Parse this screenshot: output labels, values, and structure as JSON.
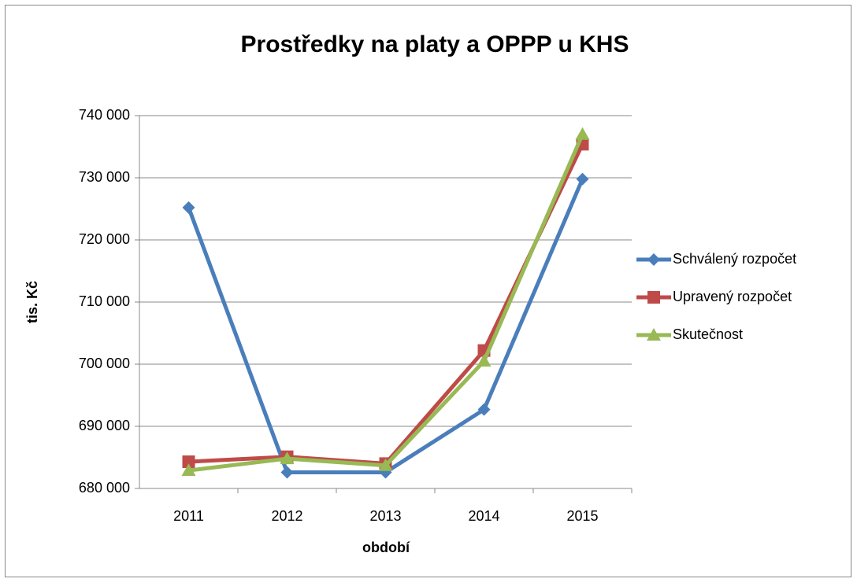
{
  "chart_data": {
    "type": "line",
    "title": "Prostředky na platy a OPPP u KHS",
    "x_label": "období",
    "y_label": "tis. Kč",
    "categories": [
      "2011",
      "2012",
      "2013",
      "2014",
      "2015"
    ],
    "series": [
      {
        "name": "Schválený rozpočet",
        "color": "#4a7ebb",
        "marker": "diamond",
        "values": [
          725200,
          682600,
          682600,
          692700,
          729800
        ]
      },
      {
        "name": "Upravený rozpočet",
        "color": "#be4b48",
        "marker": "square",
        "values": [
          684300,
          685100,
          684000,
          702200,
          735400
        ]
      },
      {
        "name": "Skutečnost",
        "color": "#98b954",
        "marker": "triangle",
        "values": [
          682900,
          684800,
          683700,
          700500,
          737000
        ]
      }
    ],
    "ylim": [
      680000,
      740000
    ],
    "yticks": [
      {
        "value": 680000,
        "label": "680 000"
      },
      {
        "value": 690000,
        "label": "690 000"
      },
      {
        "value": 700000,
        "label": "700 000"
      },
      {
        "value": 710000,
        "label": "710 000"
      },
      {
        "value": 720000,
        "label": "720 000"
      },
      {
        "value": 730000,
        "label": "730 000"
      },
      {
        "value": 740000,
        "label": "740 000"
      }
    ],
    "grid": true,
    "legend": "right"
  }
}
